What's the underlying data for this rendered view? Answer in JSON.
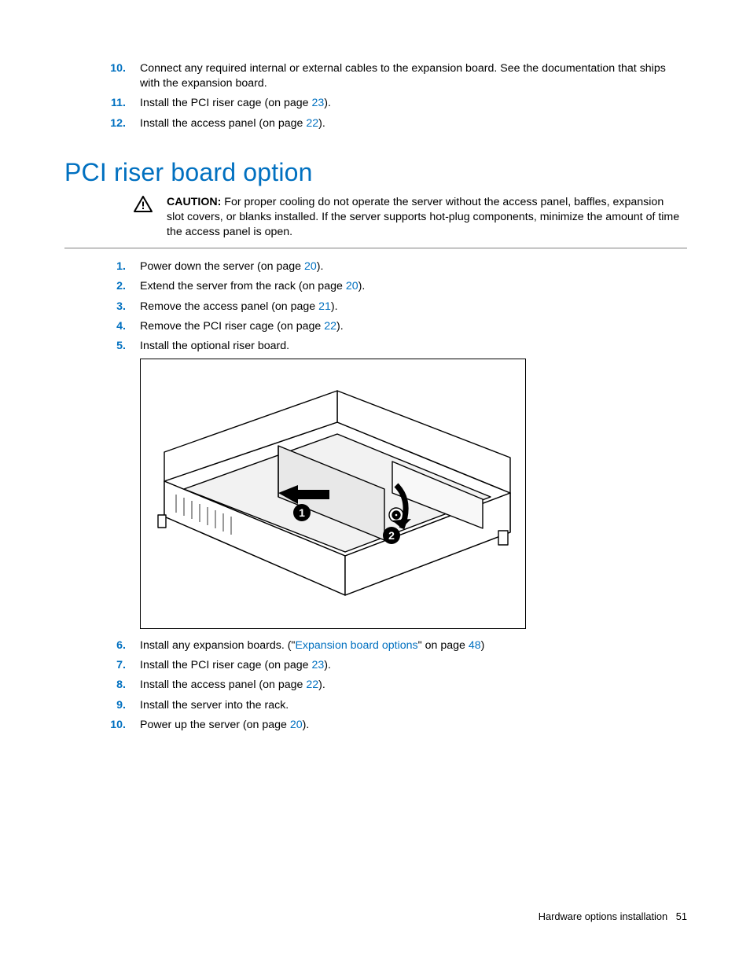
{
  "top_list": [
    {
      "n": "10.",
      "parts": [
        {
          "t": "Connect any required internal or external cables to the expansion board. See the documentation that ships with the expansion board."
        }
      ]
    },
    {
      "n": "11.",
      "parts": [
        {
          "t": "Install the PCI riser cage (on page "
        },
        {
          "t": "23",
          "link": true
        },
        {
          "t": ")."
        }
      ]
    },
    {
      "n": "12.",
      "parts": [
        {
          "t": "Install the access panel (on page "
        },
        {
          "t": "22",
          "link": true
        },
        {
          "t": ")."
        }
      ]
    }
  ],
  "heading": "PCI riser board option",
  "caution_label": "CAUTION:",
  "caution_text": " For proper cooling do not operate the server without the access panel, baffles, expansion slot covers, or blanks installed. If the server supports hot-plug components, minimize the amount of time the access panel is open.",
  "list_a": [
    {
      "n": "1.",
      "parts": [
        {
          "t": "Power down the server (on page "
        },
        {
          "t": "20",
          "link": true
        },
        {
          "t": ")."
        }
      ]
    },
    {
      "n": "2.",
      "parts": [
        {
          "t": "Extend the server from the rack (on page "
        },
        {
          "t": "20",
          "link": true
        },
        {
          "t": ")."
        }
      ]
    },
    {
      "n": "3.",
      "parts": [
        {
          "t": "Remove the access panel (on page "
        },
        {
          "t": "21",
          "link": true
        },
        {
          "t": ")."
        }
      ]
    },
    {
      "n": "4.",
      "parts": [
        {
          "t": "Remove the PCI riser cage (on page "
        },
        {
          "t": "22",
          "link": true
        },
        {
          "t": ")."
        }
      ]
    },
    {
      "n": "5.",
      "parts": [
        {
          "t": "Install the optional riser board."
        }
      ]
    }
  ],
  "list_b": [
    {
      "n": "6.",
      "parts": [
        {
          "t": "Install any expansion boards. (\""
        },
        {
          "t": "Expansion board options",
          "link": true
        },
        {
          "t": "\" on page "
        },
        {
          "t": "48",
          "link": true
        },
        {
          "t": ")"
        }
      ]
    },
    {
      "n": "7.",
      "parts": [
        {
          "t": "Install the PCI riser cage (on page "
        },
        {
          "t": "23",
          "link": true
        },
        {
          "t": ")."
        }
      ]
    },
    {
      "n": "8.",
      "parts": [
        {
          "t": "Install the access panel (on page "
        },
        {
          "t": "22",
          "link": true
        },
        {
          "t": ")."
        }
      ]
    },
    {
      "n": "9.",
      "parts": [
        {
          "t": "Install the server into the rack."
        }
      ]
    },
    {
      "n": "10.",
      "parts": [
        {
          "t": "Power up the server (on page "
        },
        {
          "t": "20",
          "link": true
        },
        {
          "t": ")."
        }
      ]
    }
  ],
  "footer_section": "Hardware options installation",
  "footer_page": "51",
  "colors": {
    "link": "#0070c0",
    "text": "#000000",
    "rule": "#7f7f7f"
  }
}
